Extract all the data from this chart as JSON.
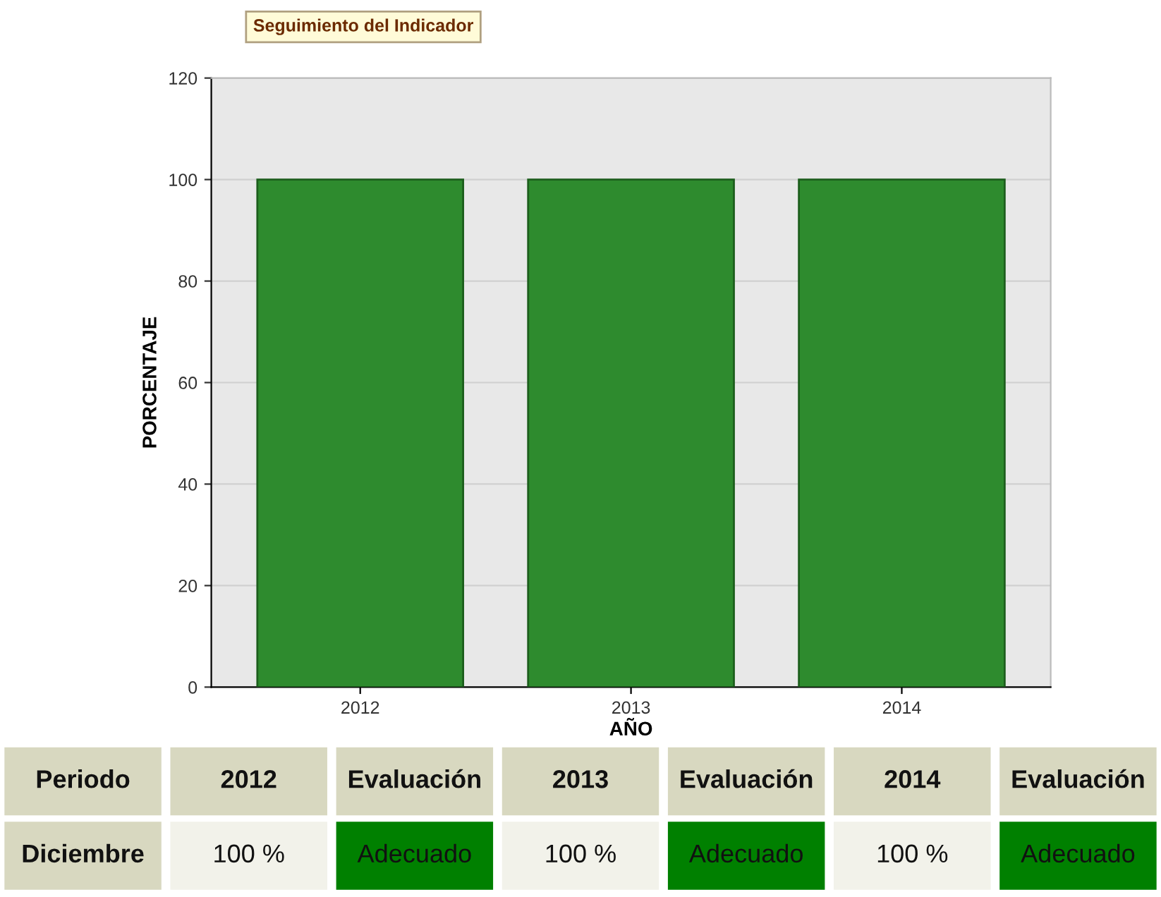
{
  "chart_data": {
    "type": "bar",
    "title": "Seguimiento del Indicador",
    "xlabel": "AÑO",
    "ylabel": "PORCENTAJE",
    "categories": [
      "2012",
      "2013",
      "2014"
    ],
    "values": [
      100,
      100,
      100
    ],
    "color": "#2e8b2e",
    "value_labels": [
      "100 %",
      "100 %",
      "100 %"
    ],
    "ylim": [
      0,
      120
    ],
    "yticks": [
      0,
      20,
      40,
      60,
      80,
      100,
      120
    ],
    "grid": "y",
    "annotations": [
      "Periodo",
      "Evaluación",
      "Evaluación",
      "Evaluación",
      "Diciembre",
      "Adecuado",
      "Adecuado",
      "Adecuado"
    ]
  }
}
